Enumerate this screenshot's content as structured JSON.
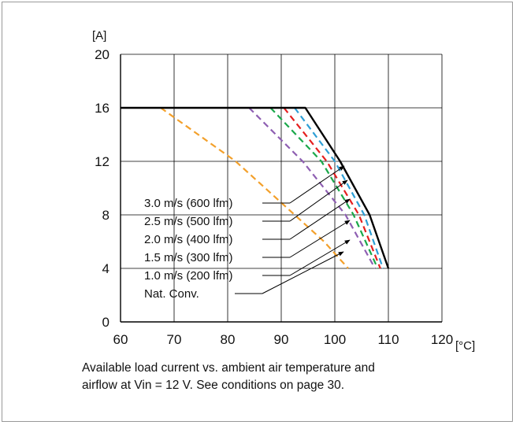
{
  "chart_data": {
    "type": "line",
    "title": "",
    "xlabel": "[°C]",
    "ylabel": "[A]",
    "xlim": [
      60,
      120
    ],
    "ylim": [
      0,
      20
    ],
    "x_ticks": [
      60,
      70,
      80,
      90,
      100,
      110,
      120
    ],
    "y_ticks": [
      0,
      4,
      8,
      12,
      16,
      20
    ],
    "grid": true,
    "legend_placement": "inside-left, labels with leader arrows",
    "series": [
      {
        "name": "3.0 m/s (600 lfm)",
        "color": "#000000",
        "dash": "solid",
        "x": [
          60,
          94.5,
          101,
          106.5,
          110
        ],
        "y": [
          16,
          16,
          12,
          8,
          4
        ]
      },
      {
        "name": "2.5 m/s (500 lfm)",
        "color": "#2e9fd6",
        "dash": "dashed",
        "x": [
          92.5,
          100,
          105.5,
          109
        ],
        "y": [
          16,
          12,
          8,
          4
        ]
      },
      {
        "name": "2.0 m/s (400 lfm)",
        "color": "#e51f1f",
        "dash": "dashed",
        "x": [
          90.5,
          98.5,
          104.5,
          108.5
        ],
        "y": [
          16,
          12,
          8,
          4
        ]
      },
      {
        "name": "1.5 m/s (300 lfm)",
        "color": "#1aa84a",
        "dash": "dashed",
        "x": [
          88,
          97.5,
          103.5,
          108
        ],
        "y": [
          16,
          12,
          8,
          4
        ]
      },
      {
        "name": "1.0 m/s (200 lfm)",
        "color": "#8e5fb2",
        "dash": "dashed",
        "x": [
          84,
          94,
          102,
          107.5
        ],
        "y": [
          16,
          12,
          8,
          4
        ]
      },
      {
        "name": "Nat. Conv.",
        "color": "#f3a02b",
        "dash": "dashed",
        "x": [
          67.5,
          81.5,
          92.5,
          98,
          102.5
        ],
        "y": [
          16,
          12,
          8,
          6,
          4
        ]
      }
    ]
  },
  "caption": {
    "line1": "Available load current vs. ambient air temperature and",
    "line2": "airflow at Vin = 12 V. See conditions on page 30."
  }
}
